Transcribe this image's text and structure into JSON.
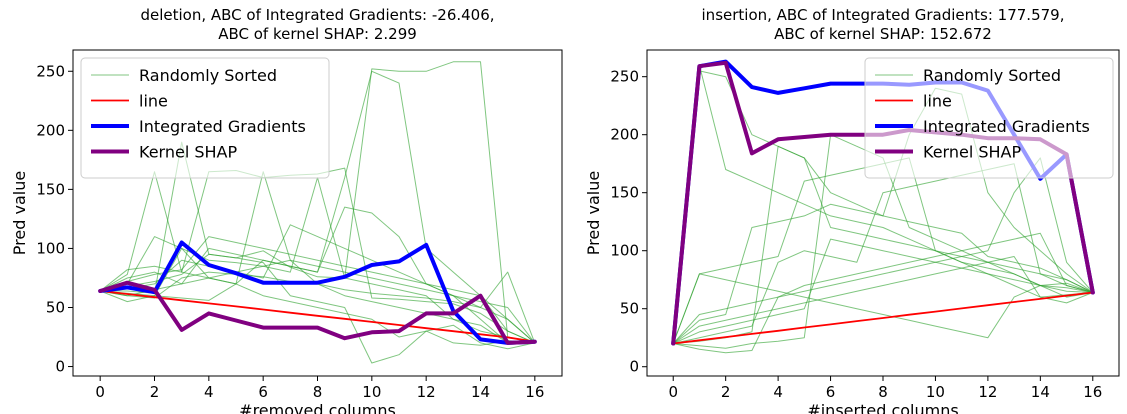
{
  "chart_data": [
    {
      "type": "line",
      "title_lines": [
        "deletion, ABC of Integrated Gradients: -26.406,",
        "ABC of kernel SHAP: 2.299"
      ],
      "xlabel": "#removed columns",
      "ylabel": "Pred value",
      "xlim": [
        -1,
        17
      ],
      "ylim": [
        -8,
        268
      ],
      "xticks": [
        0,
        2,
        4,
        6,
        8,
        10,
        12,
        14,
        16
      ],
      "yticks": [
        0,
        50,
        100,
        150,
        200,
        250
      ],
      "grid": false,
      "legend_position": "top-left",
      "x": [
        0,
        1,
        2,
        3,
        4,
        5,
        6,
        7,
        8,
        9,
        10,
        11,
        12,
        13,
        14,
        15,
        16
      ],
      "series": [
        {
          "name": "Randomly Sorted",
          "color": "#2ca02c",
          "style": "thin",
          "values": [
            64,
            82,
            85,
            80,
            165,
            166,
            160,
            162,
            163,
            168,
            58,
            57,
            55,
            53,
            45,
            30,
            20
          ]
        },
        {
          "name": "",
          "color": "#2ca02c",
          "style": "thin",
          "values": [
            64,
            64,
            62,
            190,
            95,
            92,
            98,
            84,
            76,
            75,
            252,
            250,
            250,
            258,
            258,
            25,
            20
          ]
        },
        {
          "name": "",
          "color": "#2ca02c",
          "style": "thin",
          "values": [
            64,
            60,
            58,
            75,
            80,
            78,
            76,
            72,
            70,
            65,
            62,
            60,
            58,
            55,
            50,
            80,
            20
          ]
        },
        {
          "name": "",
          "color": "#2ca02c",
          "style": "thin",
          "values": [
            64,
            70,
            110,
            100,
            90,
            88,
            85,
            80,
            160,
            75,
            70,
            65,
            60,
            40,
            30,
            25,
            20
          ]
        },
        {
          "name": "",
          "color": "#2ca02c",
          "style": "thin",
          "values": [
            64,
            75,
            80,
            70,
            100,
            95,
            90,
            85,
            80,
            135,
            130,
            110,
            70,
            60,
            40,
            20,
            20
          ]
        },
        {
          "name": "",
          "color": "#2ca02c",
          "style": "thin",
          "values": [
            64,
            55,
            60,
            100,
            75,
            70,
            165,
            90,
            85,
            80,
            75,
            70,
            65,
            60,
            55,
            50,
            20
          ]
        },
        {
          "name": "",
          "color": "#2ca02c",
          "style": "thin",
          "values": [
            64,
            68,
            72,
            78,
            95,
            92,
            88,
            60,
            55,
            50,
            3,
            10,
            30,
            20,
            18,
            22,
            20
          ]
        },
        {
          "name": "",
          "color": "#2ca02c",
          "style": "thin",
          "values": [
            64,
            78,
            165,
            80,
            75,
            70,
            60,
            55,
            50,
            45,
            40,
            25,
            30,
            35,
            20,
            15,
            20
          ]
        },
        {
          "name": "",
          "color": "#2ca02c",
          "style": "thin",
          "values": [
            64,
            66,
            70,
            90,
            85,
            80,
            75,
            120,
            110,
            100,
            90,
            80,
            70,
            60,
            50,
            40,
            20
          ]
        },
        {
          "name": "",
          "color": "#2ca02c",
          "style": "thin",
          "values": [
            64,
            62,
            60,
            58,
            56,
            70,
            90,
            85,
            80,
            160,
            250,
            240,
            100,
            80,
            60,
            40,
            20
          ]
        },
        {
          "name": "",
          "color": "#2ca02c",
          "style": "thin",
          "values": [
            64,
            72,
            78,
            82,
            110,
            105,
            100,
            95,
            90,
            85,
            80,
            75,
            70,
            65,
            60,
            30,
            20
          ]
        },
        {
          "name": "",
          "color": "#2ca02c",
          "style": "thin",
          "values": [
            64,
            60,
            65,
            70,
            75,
            80,
            85,
            90,
            70,
            60,
            55,
            50,
            45,
            40,
            35,
            20,
            20
          ]
        },
        {
          "name": "line",
          "color": "#ff0000",
          "style": "medium",
          "values": [
            64,
            61.4,
            58.7,
            56.1,
            53.5,
            50.9,
            48.3,
            45.6,
            43,
            40.4,
            37.8,
            35.2,
            32.5,
            29.9,
            27.3,
            24.7,
            21
          ]
        },
        {
          "name": "Integrated Gradients",
          "color": "#0000ff",
          "style": "thick",
          "values": [
            64,
            67,
            63,
            105,
            86,
            79,
            71,
            71,
            71,
            76,
            86,
            89,
            103,
            47,
            23,
            20,
            21
          ]
        },
        {
          "name": "Kernel SHAP",
          "color": "#800080",
          "style": "thick",
          "values": [
            64,
            71,
            65,
            31,
            45,
            39,
            33,
            33,
            33,
            24,
            29,
            30,
            45,
            45,
            60,
            20,
            21
          ]
        }
      ]
    },
    {
      "type": "line",
      "title_lines": [
        "insertion, ABC of Integrated Gradients: 177.579,",
        "ABC of kernel SHAP: 152.672"
      ],
      "xlabel": "#inserted columns",
      "ylabel": "Pred value",
      "xlim": [
        -1,
        17
      ],
      "ylim": [
        -8,
        273
      ],
      "xticks": [
        0,
        2,
        4,
        6,
        8,
        10,
        12,
        14,
        16
      ],
      "yticks": [
        0,
        50,
        100,
        150,
        200,
        250
      ],
      "grid": false,
      "legend_position": "top-right",
      "x": [
        0,
        1,
        2,
        3,
        4,
        5,
        6,
        7,
        8,
        9,
        10,
        11,
        12,
        13,
        14,
        15,
        16
      ],
      "series": [
        {
          "name": "Randomly Sorted",
          "color": "#2ca02c",
          "style": "thin",
          "values": [
            20,
            80,
            85,
            90,
            95,
            160,
            165,
            170,
            175,
            180,
            100,
            90,
            85,
            80,
            70,
            60,
            64
          ]
        },
        {
          "name": "",
          "color": "#2ca02c",
          "style": "thin",
          "values": [
            20,
            40,
            45,
            120,
            125,
            130,
            140,
            135,
            130,
            125,
            120,
            115,
            95,
            90,
            85,
            75,
            64
          ]
        },
        {
          "name": "",
          "color": "#2ca02c",
          "style": "thin",
          "values": [
            20,
            255,
            250,
            200,
            190,
            180,
            150,
            140,
            130,
            200,
            240,
            235,
            150,
            120,
            100,
            80,
            64
          ]
        },
        {
          "name": "",
          "color": "#2ca02c",
          "style": "thin",
          "values": [
            20,
            25,
            30,
            35,
            90,
            100,
            95,
            90,
            150,
            155,
            160,
            165,
            170,
            175,
            80,
            70,
            64
          ]
        },
        {
          "name": "",
          "color": "#2ca02c",
          "style": "thin",
          "values": [
            20,
            15,
            12,
            14,
            60,
            70,
            75,
            80,
            85,
            90,
            95,
            100,
            105,
            110,
            115,
            70,
            64
          ]
        },
        {
          "name": "",
          "color": "#2ca02c",
          "style": "thin",
          "values": [
            20,
            30,
            35,
            40,
            45,
            50,
            110,
            105,
            100,
            95,
            90,
            85,
            80,
            75,
            70,
            68,
            64
          ]
        },
        {
          "name": "",
          "color": "#2ca02c",
          "style": "thin",
          "values": [
            20,
            22,
            25,
            30,
            190,
            180,
            120,
            115,
            110,
            105,
            100,
            95,
            90,
            85,
            80,
            75,
            64
          ]
        },
        {
          "name": "",
          "color": "#2ca02c",
          "style": "thin",
          "values": [
            20,
            45,
            50,
            55,
            60,
            65,
            70,
            75,
            80,
            85,
            90,
            95,
            100,
            150,
            180,
            90,
            64
          ]
        },
        {
          "name": "",
          "color": "#2ca02c",
          "style": "thin",
          "values": [
            20,
            80,
            75,
            70,
            65,
            60,
            55,
            50,
            45,
            40,
            35,
            30,
            25,
            60,
            70,
            72,
            64
          ]
        },
        {
          "name": "",
          "color": "#2ca02c",
          "style": "thin",
          "values": [
            20,
            18,
            16,
            20,
            22,
            25,
            200,
            190,
            180,
            120,
            110,
            100,
            90,
            80,
            70,
            65,
            64
          ]
        },
        {
          "name": "",
          "color": "#2ca02c",
          "style": "thin",
          "values": [
            20,
            35,
            40,
            45,
            50,
            55,
            60,
            65,
            70,
            75,
            80,
            85,
            90,
            95,
            60,
            62,
            64
          ]
        },
        {
          "name": "",
          "color": "#2ca02c",
          "style": "thin",
          "values": [
            20,
            260,
            170,
            160,
            150,
            140,
            130,
            125,
            120,
            110,
            100,
            90,
            80,
            70,
            60,
            55,
            64
          ]
        },
        {
          "name": "line",
          "color": "#ff0000",
          "style": "medium",
          "values": [
            20,
            22.8,
            25.5,
            28.3,
            31,
            33.8,
            36.5,
            39.3,
            42,
            44.8,
            47.5,
            50.3,
            53,
            55.8,
            58.5,
            61.3,
            64
          ]
        },
        {
          "name": "Integrated Gradients",
          "color": "#0000ff",
          "style": "thick",
          "values": [
            20,
            259,
            263,
            241,
            236,
            240,
            244,
            244,
            244,
            243,
            245,
            245,
            238,
            200,
            162,
            183,
            64
          ]
        },
        {
          "name": "Kernel SHAP",
          "color": "#800080",
          "style": "thick",
          "values": [
            20,
            259,
            262,
            184,
            196,
            198,
            200,
            200,
            200,
            204,
            202,
            200,
            197,
            197,
            196,
            183,
            64
          ]
        }
      ]
    }
  ]
}
